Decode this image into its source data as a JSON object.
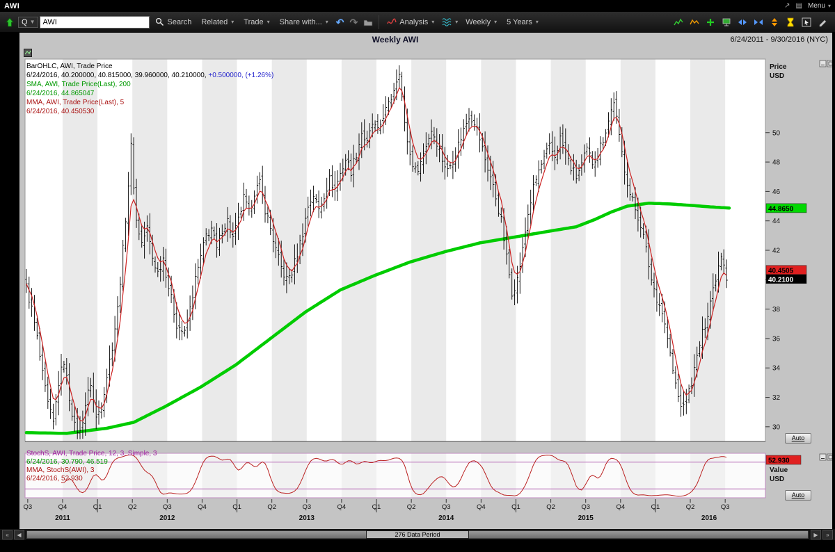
{
  "window": {
    "title": "AWI",
    "menu_label": "Menu"
  },
  "toolbar": {
    "symbol_combo": "Q",
    "symbol_input": "AWI",
    "search_label": "Search",
    "related_label": "Related",
    "trade_label": "Trade",
    "share_label": "Share with...",
    "analysis_label": "Analysis",
    "period_label": "Weekly",
    "range_label": "5 Years"
  },
  "chart_header": {
    "title": "Weekly AWI",
    "date_range": "6/24/2011 - 9/30/2016 (NYC)"
  },
  "main_legend": {
    "line1": "BarOHLC, AWI, Trade Price",
    "line2_black": "6/24/2016, 40.200000, 40.815000, 39.960000, 40.210000,",
    "line2_blue": "+0.500000, (+1.26%)",
    "line3": "SMA, AWI, Trade Price(Last), 200",
    "line4": "6/24/2016, 44.865047",
    "line5": "MMA, AWI, Trade Price(Last), 5",
    "line6": "6/24/2016, 40.450530"
  },
  "price_axis": {
    "label1": "Price",
    "label2": "USD",
    "auto_label": "Auto",
    "sma_badge": "44.8650",
    "mma_badge": "40.4505",
    "last_badge": "40.2100"
  },
  "stoch_legend": {
    "line1": "StochS, AWI, Trade Price, 12, 3, Simple, 3",
    "line2": "6/24/2016, 30.790, 46.519",
    "line3": "MMA, StochS(AWI), 3",
    "line4": "6/24/2016, 52.930"
  },
  "value_axis": {
    "label1": "Value",
    "label2": "USD",
    "auto_label": "Auto",
    "badge": "52.930"
  },
  "scrollbar": {
    "label": "276 Data Period"
  },
  "colors": {
    "sma_green": "#00cc00",
    "mma_red": "#cc2222",
    "stoch_red": "#bb2222",
    "band_purple": "#b469b4",
    "change_blue": "#2222cc",
    "badge_green": "#00d800",
    "badge_red": "#e02020",
    "badge_black": "#000000"
  },
  "chart_data": {
    "type": "ohlc",
    "title": "Weekly AWI",
    "symbol": "AWI",
    "period": "Weekly",
    "date_range": "6/24/2011 - 9/30/2016 (NYC)",
    "bars_total": 276,
    "bars_with_data": 262,
    "price_axis": {
      "min": 29.0,
      "max": 55.0,
      "ticks": [
        30,
        32,
        34,
        36,
        38,
        40,
        42,
        44,
        46,
        48,
        50
      ]
    },
    "x_axis": {
      "quarter_labels": [
        "Q3",
        "Q4",
        "Q1",
        "Q2",
        "Q3",
        "Q4",
        "Q1",
        "Q2",
        "Q3",
        "Q4",
        "Q1",
        "Q2",
        "Q3",
        "Q4",
        "Q1",
        "Q2",
        "Q3",
        "Q4",
        "Q1",
        "Q2",
        "Q3"
      ],
      "quarter_weeks": [
        1,
        14,
        27,
        40,
        53,
        66,
        79,
        92,
        105,
        118,
        131,
        144,
        157,
        170,
        183,
        196,
        209,
        222,
        235,
        248,
        261
      ],
      "year_labels": [
        "2011",
        "2012",
        "2013",
        "2014",
        "2015",
        "2016"
      ],
      "year_center_weeks": [
        14,
        53,
        105,
        157,
        209,
        255
      ],
      "year_boundary_weeks": [
        27,
        79,
        131,
        183,
        235
      ]
    },
    "close_keypoints": [
      [
        0,
        39.5
      ],
      [
        2,
        38.0
      ],
      [
        4,
        36.0
      ],
      [
        6,
        33.5
      ],
      [
        8,
        31.5
      ],
      [
        10,
        30.2
      ],
      [
        12,
        33.0
      ],
      [
        14,
        34.5
      ],
      [
        16,
        32.0
      ],
      [
        18,
        30.0
      ],
      [
        20,
        29.6
      ],
      [
        22,
        31.5
      ],
      [
        24,
        33.0
      ],
      [
        26,
        30.6
      ],
      [
        28,
        31.5
      ],
      [
        30,
        33.5
      ],
      [
        32,
        35.5
      ],
      [
        34,
        38.0
      ],
      [
        36,
        42.0
      ],
      [
        38,
        46.5
      ],
      [
        39,
        49.0
      ],
      [
        41,
        44.0
      ],
      [
        43,
        42.5
      ],
      [
        45,
        43.5
      ],
      [
        47,
        41.5
      ],
      [
        49,
        40.5
      ],
      [
        51,
        41.5
      ],
      [
        53,
        39.5
      ],
      [
        56,
        37.0
      ],
      [
        59,
        36.3
      ],
      [
        61,
        38.0
      ],
      [
        63,
        40.0
      ],
      [
        65,
        41.5
      ],
      [
        67,
        43.0
      ],
      [
        69,
        43.5
      ],
      [
        71,
        42.0
      ],
      [
        73,
        43.5
      ],
      [
        75,
        44.0
      ],
      [
        77,
        42.8
      ],
      [
        79,
        44.0
      ],
      [
        81,
        45.5
      ],
      [
        83,
        44.5
      ],
      [
        85,
        46.0
      ],
      [
        87,
        46.5
      ],
      [
        89,
        44.8
      ],
      [
        91,
        43.5
      ],
      [
        93,
        42.0
      ],
      [
        95,
        40.8
      ],
      [
        97,
        40.0
      ],
      [
        99,
        40.5
      ],
      [
        101,
        41.8
      ],
      [
        103,
        43.2
      ],
      [
        105,
        45.0
      ],
      [
        107,
        45.8
      ],
      [
        109,
        44.8
      ],
      [
        111,
        45.8
      ],
      [
        113,
        46.8
      ],
      [
        115,
        46.2
      ],
      [
        117,
        47.2
      ],
      [
        119,
        48.2
      ],
      [
        121,
        47.4
      ],
      [
        123,
        48.6
      ],
      [
        125,
        50.0
      ],
      [
        127,
        49.2
      ],
      [
        129,
        50.6
      ],
      [
        131,
        50.0
      ],
      [
        133,
        51.2
      ],
      [
        135,
        51.8
      ],
      [
        137,
        53.0
      ],
      [
        139,
        54.3
      ],
      [
        141,
        50.5
      ],
      [
        143,
        48.5
      ],
      [
        145,
        47.4
      ],
      [
        147,
        48.0
      ],
      [
        149,
        49.2
      ],
      [
        151,
        50.2
      ],
      [
        153,
        49.4
      ],
      [
        155,
        48.2
      ],
      [
        157,
        47.4
      ],
      [
        159,
        48.2
      ],
      [
        161,
        49.2
      ],
      [
        163,
        50.2
      ],
      [
        165,
        51.2
      ],
      [
        167,
        50.8
      ],
      [
        169,
        49.6
      ],
      [
        171,
        48.2
      ],
      [
        173,
        47.0
      ],
      [
        175,
        45.6
      ],
      [
        177,
        44.0
      ],
      [
        179,
        41.5
      ],
      [
        181,
        39.2
      ],
      [
        183,
        40.0
      ],
      [
        185,
        42.0
      ],
      [
        187,
        44.5
      ],
      [
        189,
        46.2
      ],
      [
        191,
        47.4
      ],
      [
        193,
        48.2
      ],
      [
        195,
        49.0
      ],
      [
        197,
        48.4
      ],
      [
        199,
        49.6
      ],
      [
        201,
        48.6
      ],
      [
        203,
        47.6
      ],
      [
        205,
        47.0
      ],
      [
        207,
        47.8
      ],
      [
        209,
        48.8
      ],
      [
        211,
        48.0
      ],
      [
        213,
        48.6
      ],
      [
        215,
        49.6
      ],
      [
        217,
        50.8
      ],
      [
        219,
        52.2
      ],
      [
        221,
        49.6
      ],
      [
        223,
        47.6
      ],
      [
        225,
        45.8
      ],
      [
        227,
        44.8
      ],
      [
        229,
        43.8
      ],
      [
        231,
        42.0
      ],
      [
        233,
        40.0
      ],
      [
        235,
        38.8
      ],
      [
        237,
        37.8
      ],
      [
        239,
        36.0
      ],
      [
        241,
        33.8
      ],
      [
        243,
        32.0
      ],
      [
        245,
        31.2
      ],
      [
        247,
        32.4
      ],
      [
        249,
        33.8
      ],
      [
        251,
        35.6
      ],
      [
        253,
        37.0
      ],
      [
        255,
        38.6
      ],
      [
        257,
        40.2
      ],
      [
        259,
        41.8
      ],
      [
        260,
        41.2
      ],
      [
        261,
        40.21
      ]
    ],
    "sma200_keypoints": [
      [
        0,
        29.6
      ],
      [
        15,
        29.55
      ],
      [
        30,
        29.9
      ],
      [
        40,
        30.3
      ],
      [
        52,
        31.4
      ],
      [
        65,
        32.7
      ],
      [
        78,
        34.2
      ],
      [
        91,
        36.0
      ],
      [
        104,
        37.8
      ],
      [
        117,
        39.3
      ],
      [
        130,
        40.3
      ],
      [
        143,
        41.2
      ],
      [
        156,
        41.9
      ],
      [
        169,
        42.5
      ],
      [
        182,
        42.9
      ],
      [
        195,
        43.3
      ],
      [
        205,
        43.6
      ],
      [
        212,
        44.1
      ],
      [
        218,
        44.6
      ],
      [
        224,
        45.0
      ],
      [
        232,
        45.2
      ],
      [
        240,
        45.15
      ],
      [
        248,
        45.05
      ],
      [
        255,
        44.95
      ],
      [
        262,
        44.87
      ]
    ],
    "stoch": {
      "upper_band": 80,
      "lower_band": 20,
      "last_k": 30.79,
      "last_d": 46.519,
      "last_mma": 52.93
    },
    "last": {
      "date": "6/24/2016",
      "open": 40.2,
      "high": 40.815,
      "low": 39.96,
      "close": 40.21,
      "change": 0.5,
      "change_pct": 1.26,
      "sma200": 44.865047,
      "mma5": 40.45053
    }
  }
}
